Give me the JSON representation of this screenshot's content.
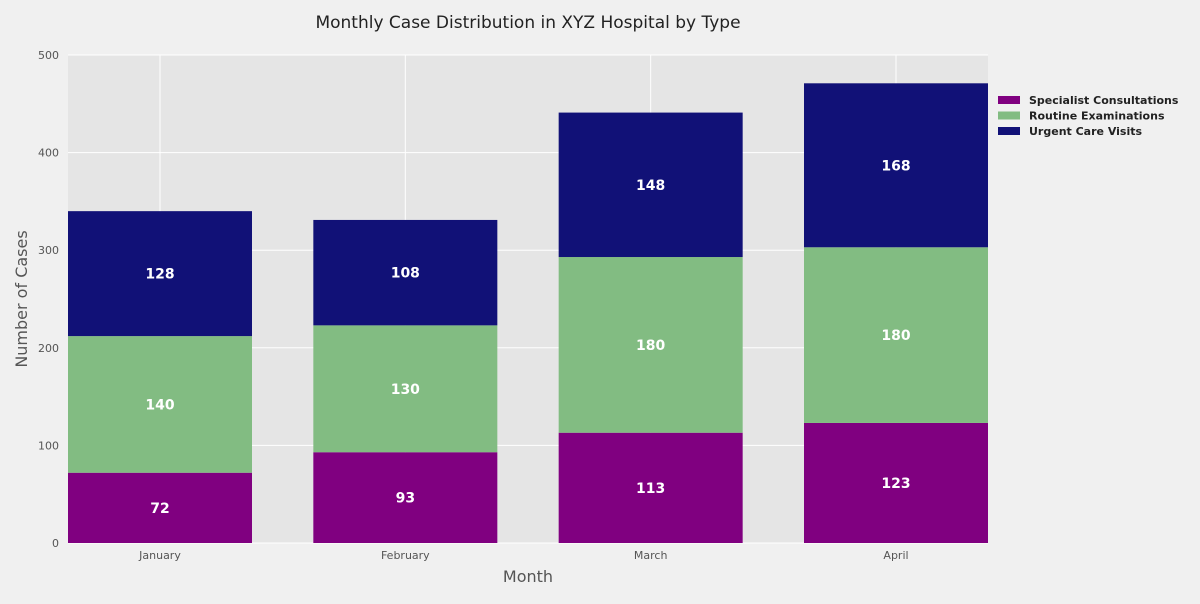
{
  "chart_data": {
    "type": "bar",
    "stacked": true,
    "title": "Monthly Case Distribution in XYZ Hospital by Type",
    "xlabel": "Month",
    "ylabel": "Number of Cases",
    "categories": [
      "January",
      "February",
      "March",
      "April"
    ],
    "series": [
      {
        "name": "Specialist Consultations",
        "values": [
          72,
          93,
          113,
          123
        ],
        "color": "#800080"
      },
      {
        "name": "Routine Examinations",
        "values": [
          140,
          130,
          180,
          180
        ],
        "color": "#82bc82"
      },
      {
        "name": "Urgent Care Visits",
        "values": [
          128,
          108,
          148,
          168
        ],
        "color": "#111177"
      }
    ],
    "ylim": [
      0,
      500
    ],
    "yticks": [
      0,
      100,
      200,
      300,
      400,
      500
    ],
    "grid": true,
    "legend_position": "top-right",
    "data_labels": true
  }
}
